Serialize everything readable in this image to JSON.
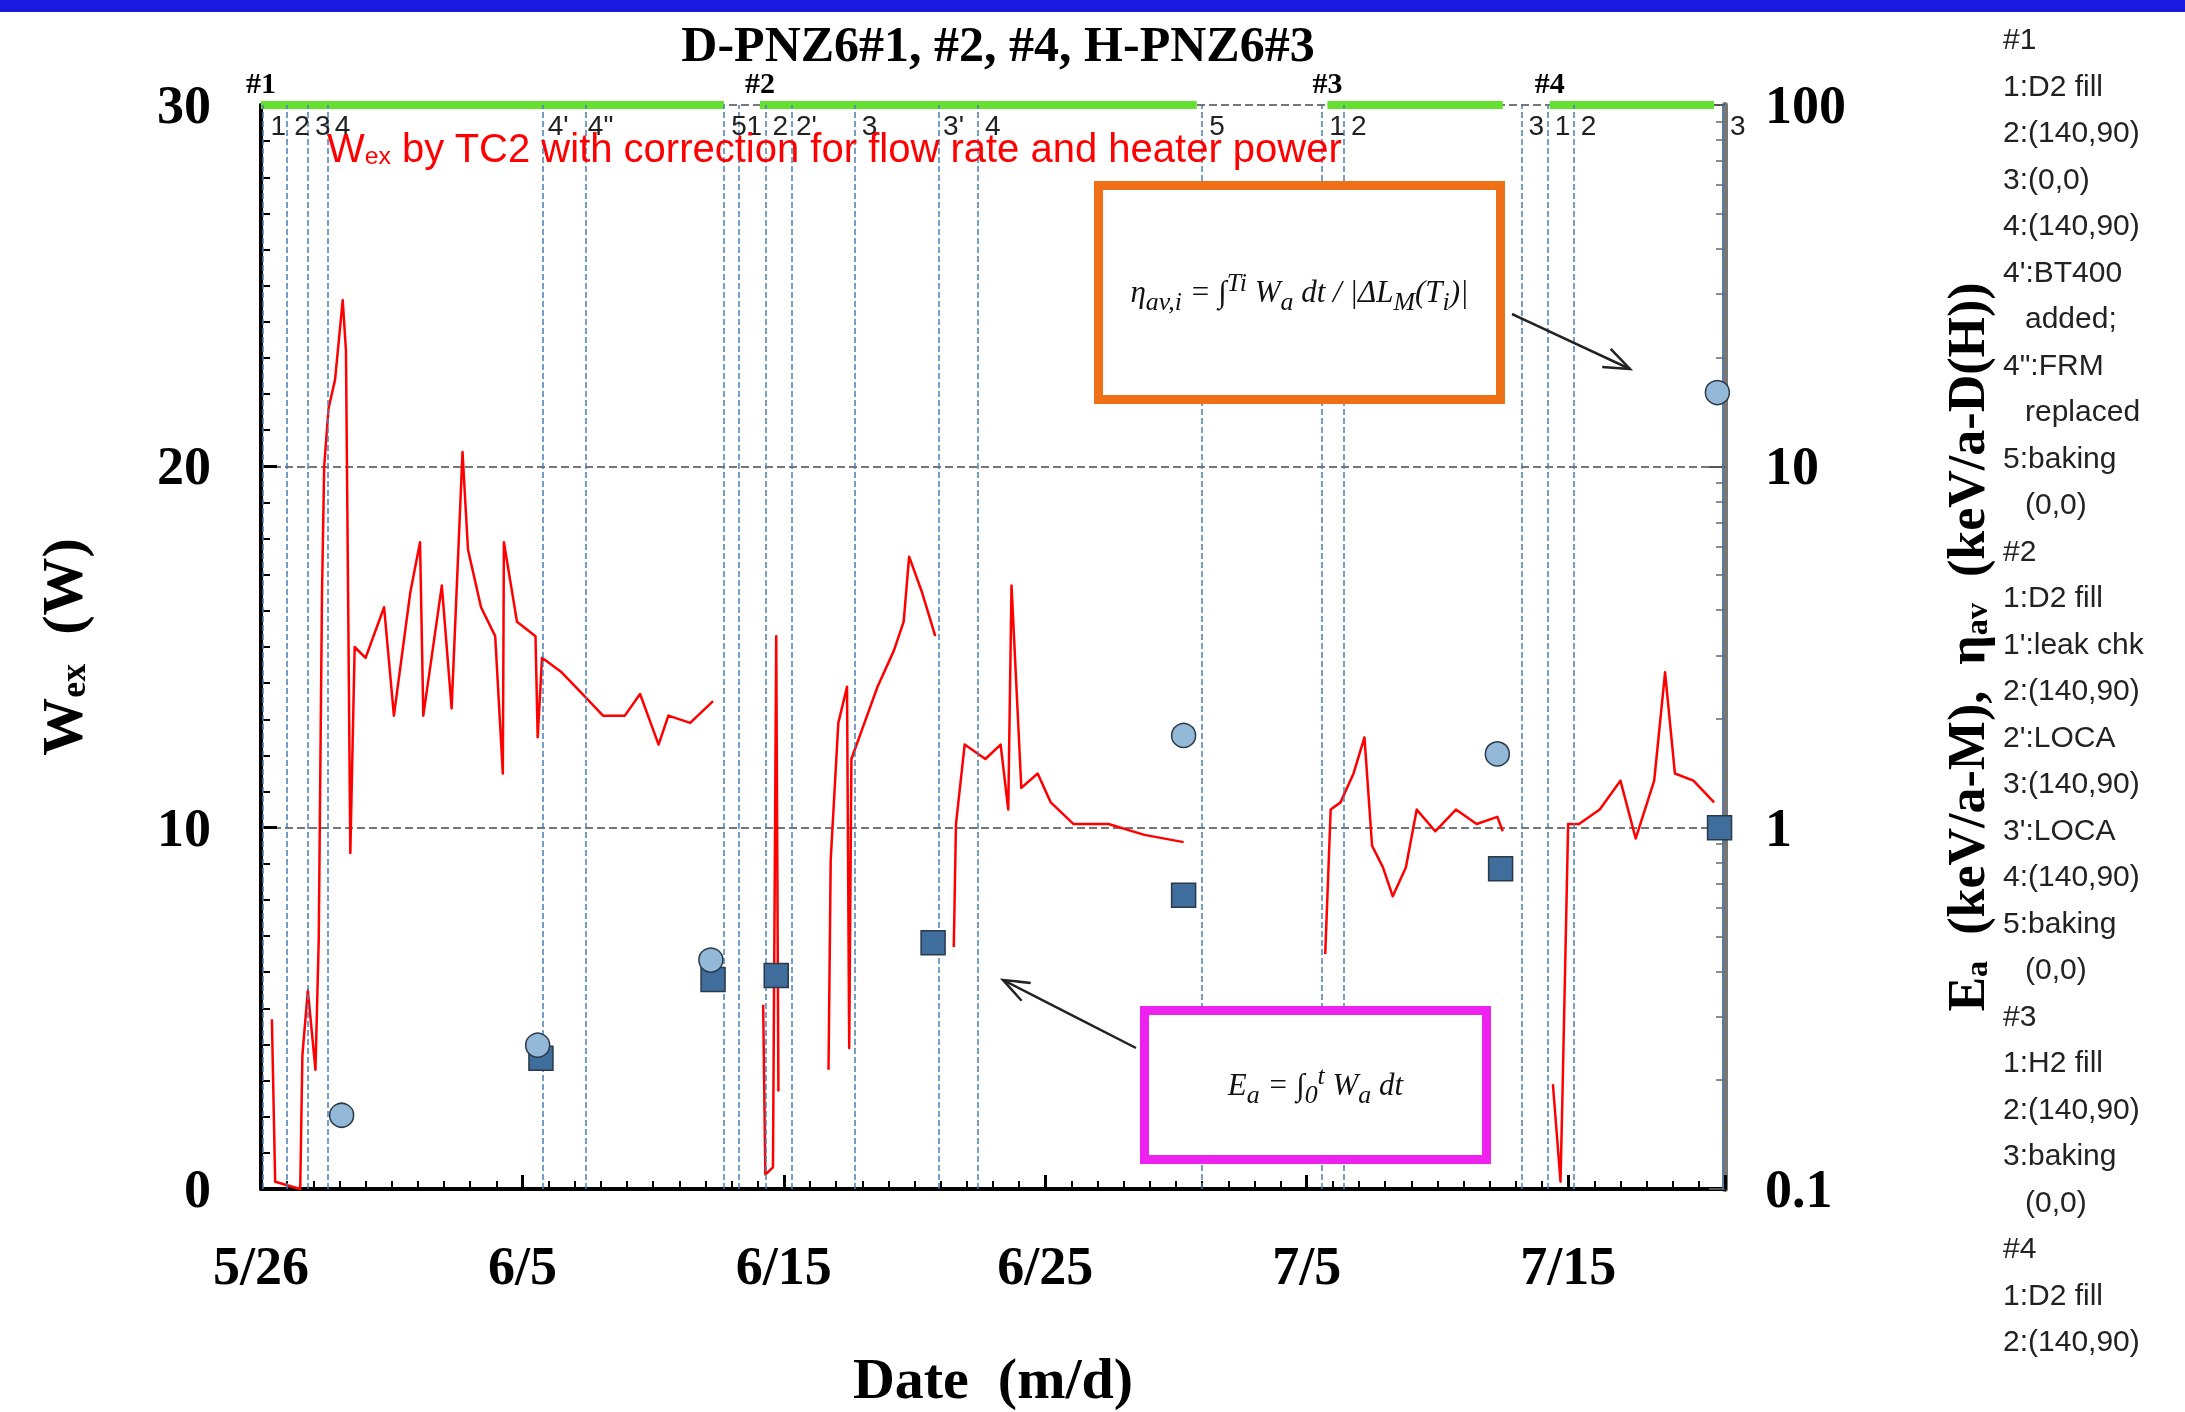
{
  "chart_data": {
    "type": "line",
    "title": "D-PNZ6#1, #2, #4, H-PNZ6#3",
    "xlabel": "Date  (m/d)",
    "ylabel": "W$_{ex}$  (W)",
    "y2label": "E$_{a}$  (keV/a-M),  η$_{av}$  (keV/a-D(H))",
    "xlim": [
      "--05-26T00:00",
      "--07-21T00:00"
    ],
    "xticks": [
      {
        "value": "--05-26",
        "label": "5/26"
      },
      {
        "value": "--06-05",
        "label": "6/5"
      },
      {
        "value": "--06-15",
        "label": "6/15"
      },
      {
        "value": "--06-25",
        "label": "6/25"
      },
      {
        "value": "--07-05",
        "label": "7/5"
      },
      {
        "value": "--07-15",
        "label": "7/15"
      }
    ],
    "ylim": [
      0,
      30
    ],
    "yticks": [
      0,
      10,
      20,
      30
    ],
    "y2lim": [
      0.1,
      100
    ],
    "y2ticks": [
      0.1,
      1,
      10,
      100
    ],
    "log": "y2",
    "grid": "y",
    "series": [
      {
        "name": "W$_{ex}$ by TC2 with correction for flow rate and heater power",
        "type": "line",
        "color": "#ff0000",
        "marker": "none",
        "x": [
          "--05-26T10:00",
          "--05-26T13:00",
          "--05-27T12:00",
          "--05-27T14:00",
          "--05-27T19:00",
          "--05-28T02:00",
          "--05-28T05:00",
          "--05-28T08:00",
          "--05-28T10:00",
          "--05-28T14:00",
          "--05-28T20:00",
          "--05-29T03:00",
          "--05-29T06:00",
          "--05-29T10:00",
          "--05-29T14:00",
          "--05-30T00:00",
          "--05-30T17:00",
          "--05-31T02:00",
          "--05-31T17:00",
          "--06-01T02:00",
          "--06-01T05:00",
          "--06-01T22:00",
          "--06-02T07:00",
          "--06-02T17:00",
          "--06-02T22:00",
          "--06-03T10:00",
          "--06-03T23:00",
          "--06-04T06:00",
          "--06-04T07:00",
          "--06-04T19:00",
          "--06-05T12:00",
          "--06-05T14:00",
          "--06-05T18:00",
          "--06-06T12:00",
          "--06-07T07:00",
          "--06-08T02:00",
          "--06-08T22:00",
          "--06-09T12:00",
          "--06-10T05:00",
          "--06-10T14:00",
          "--06-11T10:00",
          "--06-12T07:00",
          "--06-13T00:00",
          "--06-14T05:00",
          "--06-14T07:00",
          "--06-14T14:00",
          "--06-14T17:00",
          "--06-14T19:00",
          "--06-15T12:00",
          "--06-16T17:00",
          "--06-16T19:00",
          "--06-17T02:00",
          "--06-17T10:00",
          "--06-17T12:00",
          "--06-17T14:00",
          "--06-18T02:00",
          "--06-18T14:00",
          "--06-19T05:00",
          "--06-19T14:00",
          "--06-19T19:00",
          "--06-20T07:00",
          "--06-20T19:00",
          "--06-21T05:00",
          "--06-21T12:00",
          "--06-21T14:00",
          "--06-21T22:00",
          "--06-22T17:00",
          "--06-23T07:00",
          "--06-23T14:00",
          "--06-23T17:00",
          "--06-24T02:00",
          "--06-24T17:00",
          "--06-25T05:00",
          "--06-26T02:00",
          "--06-27T10:00",
          "--06-28T19:00",
          "--06-30T07:00",
          "--07-03T00:00",
          "--07-05T17:00",
          "--07-05T22:00",
          "--07-06T07:00",
          "--07-06T19:00",
          "--07-07T05:00",
          "--07-07T12:00",
          "--07-07T22:00",
          "--07-08T07:00",
          "--07-08T19:00",
          "--07-09T05:00",
          "--07-09T22:00",
          "--07-10T17:00",
          "--07-11T12:00",
          "--07-12T07:00",
          "--07-12T12:00",
          "--07-13T12:00",
          "--07-14T10:00",
          "--07-14T17:00",
          "--07-14T19:00",
          "--07-15T00:00",
          "--07-15T10:00",
          "--07-16T05:00",
          "--07-17T00:00",
          "--07-17T14:00",
          "--07-18T07:00",
          "--07-18T17:00",
          "--07-19T02:00",
          "--07-19T19:00",
          "--07-20T14:00"
        ],
        "values": [
          4.7,
          0.2,
          0,
          3.7,
          5.5,
          3.3,
          6.9,
          16.5,
          20,
          21.6,
          22.4,
          24.6,
          23.2,
          9.3,
          15,
          14.7,
          16.1,
          13.1,
          16.5,
          17.9,
          13.1,
          16.7,
          13.3,
          20.4,
          17.7,
          16.1,
          15.3,
          11.5,
          17.9,
          15.7,
          15.3,
          12.5,
          14.7,
          14.3,
          13.7,
          13.1,
          13.1,
          13.7,
          12.3,
          13.1,
          12.9,
          13.5,
          null,
          5.1,
          0.4,
          0.6,
          15.3,
          2.7,
          null,
          3.3,
          9.1,
          12.9,
          13.9,
          3.9,
          11.9,
          12.9,
          13.9,
          14.9,
          15.7,
          17.5,
          16.5,
          15.3,
          null,
          6.7,
          10.1,
          12.3,
          11.9,
          12.3,
          10.5,
          16.7,
          11.1,
          11.5,
          10.7,
          10.1,
          10.1,
          9.8,
          9.6,
          null,
          6.5,
          10.5,
          10.7,
          11.5,
          12.5,
          9.5,
          8.9,
          8.1,
          8.9,
          10.5,
          9.9,
          10.5,
          10.1,
          10.3,
          9.9,
          null,
          2.9,
          0.2,
          2.9,
          10.1,
          10.1,
          10.5,
          11.3,
          9.7,
          11.3,
          14.3,
          11.5,
          11.3,
          10.7
        ]
      },
      {
        "name": "#1",
        "color": "#66e030",
        "marker": "none",
        "x": [
          "--05-26T00:00",
          "--06-12T17:00"
        ],
        "values": [
          30,
          30
        ]
      },
      {
        "name": "#2",
        "color": "#66e030",
        "marker": "none",
        "x": [
          "--06-14T02:00",
          "--06-30T19:00"
        ],
        "values": [
          30,
          30
        ]
      },
      {
        "name": "#3",
        "color": "#66e030",
        "marker": "none",
        "x": [
          "--07-05T19:00",
          "--07-12T12:00"
        ],
        "values": [
          30,
          30
        ]
      },
      {
        "name": "#4",
        "color": "#66e030",
        "marker": "none",
        "x": [
          "--07-14T07:00",
          "--07-20T14:00"
        ],
        "values": [
          30,
          30
        ]
      },
      {
        "type": "scatter",
        "axis": "y2",
        "color": "#3f6d9c",
        "marker": "square",
        "x": [
          "--06-05T17:00",
          "--06-12T07:00",
          "--06-14T17:00",
          "--06-20T17:00",
          "--06-30T07:00",
          "--07-12T10:00",
          "--07-20T19:00"
        ],
        "values": [
          0.23,
          0.38,
          0.39,
          0.48,
          0.65,
          0.77,
          1.0
        ]
      },
      {
        "type": "scatter",
        "axis": "y2",
        "color": "#94b8d8",
        "marker": "circle",
        "x": [
          "--05-29T02:00",
          "--06-05T14:00",
          "--06-12T05:00",
          "--06-30T07:00",
          "--07-12T07:00",
          "--07-20T17:00"
        ],
        "values": [
          0.16,
          0.25,
          0.43,
          1.8,
          1.6,
          16
        ]
      }
    ],
    "ref_lines": [
      {
        "axis": "x",
        "value": "--05-26T02:00",
        "label": "1",
        "color": "#4a7fb5",
        "line_style": "dashed"
      },
      {
        "axis": "x",
        "value": "--05-27T00:00",
        "label": "2",
        "color": "#4a7fb5",
        "line_style": "dashed"
      },
      {
        "axis": "x",
        "value": "--05-27T19:00",
        "label": "3",
        "color": "#4a7fb5",
        "line_style": "dashed"
      },
      {
        "axis": "x",
        "value": "--05-28T13:00",
        "label": "4",
        "color": "#4a7fb5",
        "line_style": "dashed"
      },
      {
        "axis": "x",
        "value": "--06-05T19:00",
        "label": "4'",
        "color": "#4a7fb5",
        "line_style": "dashed"
      },
      {
        "axis": "x",
        "value": "--06-07T10:00",
        "label": "4\"",
        "color": "#4a7fb5",
        "line_style": "dashed"
      },
      {
        "axis": "x",
        "value": "--06-12T17:00",
        "label": "5",
        "color": "#4a7fb5",
        "line_style": "dashed"
      },
      {
        "axis": "x",
        "value": "--06-13T07:00",
        "label": "1",
        "color": "#4a7fb5",
        "line_style": "dashed"
      },
      {
        "axis": "x",
        "value": "--06-14T07:00",
        "label": "2",
        "color": "#4a7fb5",
        "line_style": "dashed"
      },
      {
        "axis": "x",
        "value": "--06-15T07:00",
        "label": "2'",
        "color": "#4a7fb5",
        "line_style": "dashed"
      },
      {
        "axis": "x",
        "value": "--06-17T17:00",
        "label": "3",
        "color": "#4a7fb5",
        "line_style": "dashed"
      },
      {
        "axis": "x",
        "value": "--06-20T22:00",
        "label": "3'",
        "color": "#4a7fb5",
        "line_style": "dashed"
      },
      {
        "axis": "x",
        "value": "--06-22T10:00",
        "label": "4",
        "color": "#4a7fb5",
        "line_style": "dashed"
      },
      {
        "axis": "x",
        "value": "--07-01T00:00",
        "label": "5",
        "color": "#4a7fb5",
        "line_style": "dashed"
      },
      {
        "axis": "x",
        "value": "--07-05T14:00",
        "label": "1",
        "color": "#4a7fb5",
        "line_style": "dashed"
      },
      {
        "axis": "x",
        "value": "--07-06T10:00",
        "label": "2",
        "color": "#4a7fb5",
        "line_style": "dashed"
      },
      {
        "axis": "x",
        "value": "--07-13T05:00",
        "label": "3",
        "color": "#4a7fb5",
        "line_style": "dashed"
      },
      {
        "axis": "x",
        "value": "--07-14T05:00",
        "label": "1",
        "color": "#4a7fb5",
        "line_style": "dashed"
      },
      {
        "axis": "x",
        "value": "--07-15T05:00",
        "label": "2",
        "color": "#4a7fb5",
        "line_style": "dashed"
      },
      {
        "axis": "x",
        "value": "--07-20T22:00",
        "label": "3",
        "color": "#4a7fb5",
        "line_style": "dashed"
      }
    ],
    "annotations": [
      "η$_{av,i}$ = ∫$^{Ti}$ W$_{a}$ dt / |ΔL$_{M}$(T$_{i}$)|",
      "E$_{a}$ = ∫$_{0}$$^{t}$ W$_{a}$ dt",
      "#1",
      "1:D2 fill",
      "2:(140,90)",
      "3:(0,0)",
      "4:(140,90)",
      "4':BT400\nadded;",
      "4\":FRM\nreplaced",
      "5:baking\n(0,0)",
      "#2",
      "1:D2 fill",
      "1':leak chk",
      "2:(140,90)",
      "2':LOCA",
      "3:(140,90)",
      "3':LOCA",
      "4:(140,90)",
      "5:baking\n(0,0)",
      "#3",
      "1:H2 fill",
      "2:(140,90)",
      "3:baking\n(0,0)",
      "#4",
      "1:D2 fill",
      "2:(140,90)"
    ]
  }
}
